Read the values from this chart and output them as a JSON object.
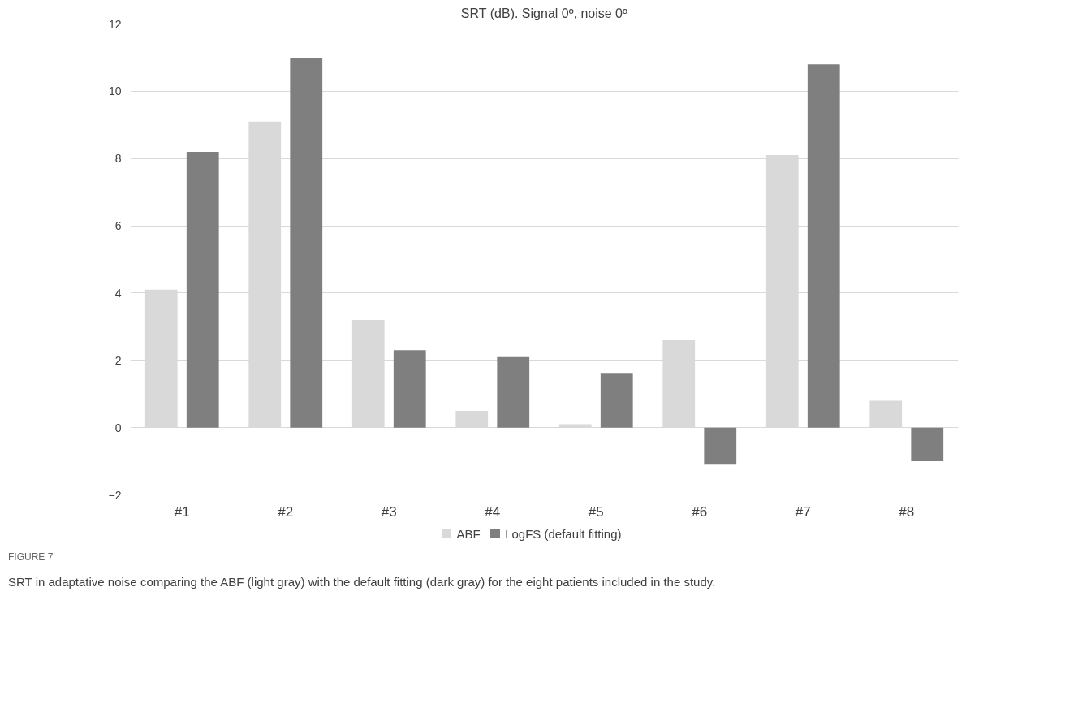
{
  "chart_data": {
    "type": "bar",
    "title": "SRT (dB). Signal 0º, noise 0º",
    "categories": [
      "#1",
      "#2",
      "#3",
      "#4",
      "#5",
      "#6",
      "#7",
      "#8"
    ],
    "series": [
      {
        "name": "ABF",
        "color": "#d9d9d9",
        "values": [
          4.1,
          9.1,
          3.2,
          0.5,
          0.1,
          2.6,
          8.1,
          0.8
        ]
      },
      {
        "name": "LogFS (default fitting)",
        "color": "#7f7f7f",
        "values": [
          8.2,
          11.0,
          2.3,
          2.1,
          1.6,
          -1.1,
          10.8,
          -1.0
        ]
      }
    ],
    "ylim": [
      -2,
      12
    ],
    "yticks": [
      -2,
      0,
      2,
      4,
      6,
      8,
      10,
      12
    ],
    "grid": "y",
    "legend": "bottom",
    "annotations": [
      "FIGURE 7",
      "SRT in adaptative noise comparing the ABF (light gray) with the default fitting (dark gray) for the eight patients included in the study."
    ]
  }
}
